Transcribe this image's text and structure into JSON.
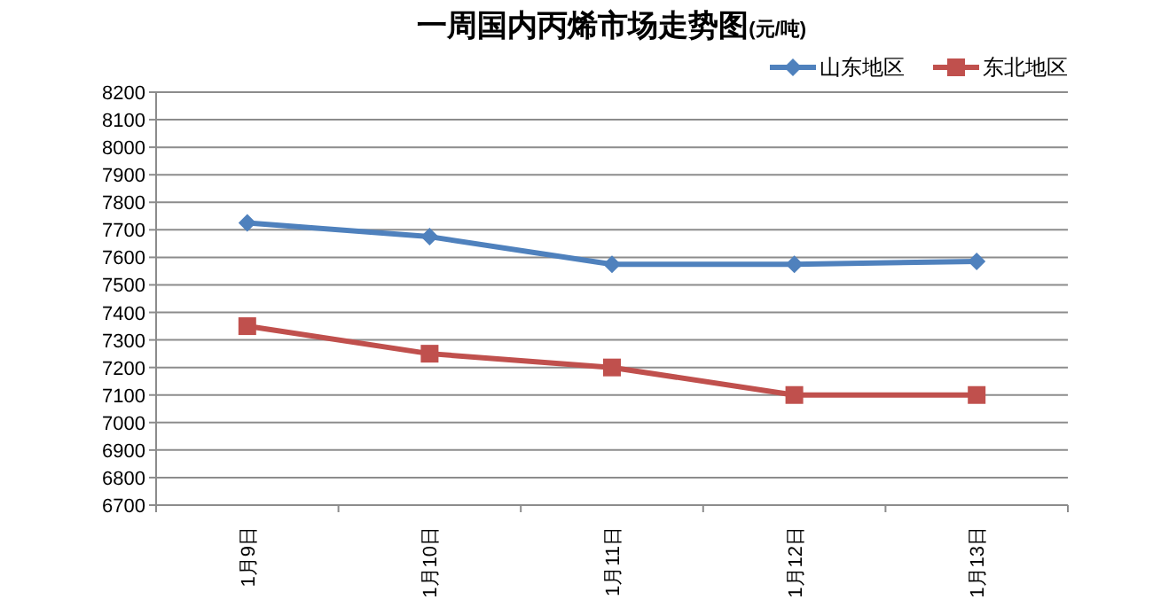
{
  "chart_data": {
    "type": "line",
    "title": "一周国内丙烯市场走势图",
    "subtitle": "(元/吨)",
    "categories": [
      "1月9日",
      "1月10日",
      "1月11日",
      "1月12日",
      "1月13日"
    ],
    "series": [
      {
        "name": "山东地区",
        "color": "#4f81bd",
        "marker": "diamond",
        "values": [
          7725,
          7675,
          7575,
          7575,
          7585
        ]
      },
      {
        "name": "东北地区",
        "color": "#c0504d",
        "marker": "square",
        "values": [
          7350,
          7250,
          7200,
          7100,
          7100
        ]
      }
    ],
    "ylim": [
      6700,
      8200
    ],
    "yticks": [
      6700,
      6800,
      6900,
      7000,
      7100,
      7200,
      7300,
      7400,
      7500,
      7600,
      7700,
      7800,
      7900,
      8000,
      8100,
      8200
    ],
    "grid": "y",
    "legend": "top right"
  }
}
